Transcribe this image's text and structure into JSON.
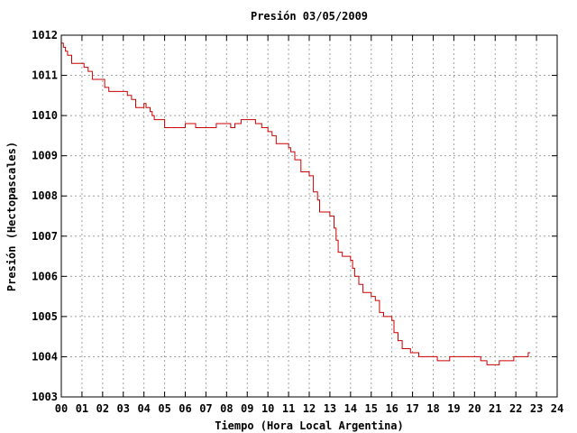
{
  "chart_data": {
    "type": "line",
    "title": "Presión 03/05/2009",
    "xlabel": "Tiempo (Hora Local Argentina)",
    "ylabel": "Presión (Hectopascales)",
    "xlim": [
      0,
      24
    ],
    "ylim": [
      1003,
      1012
    ],
    "x_ticks": [
      "00",
      "01",
      "02",
      "03",
      "04",
      "05",
      "06",
      "07",
      "08",
      "09",
      "10",
      "11",
      "12",
      "13",
      "14",
      "15",
      "16",
      "17",
      "18",
      "19",
      "20",
      "21",
      "22",
      "23",
      "24"
    ],
    "y_ticks": [
      "1003",
      "1004",
      "1005",
      "1006",
      "1007",
      "1008",
      "1009",
      "1010",
      "1011",
      "1012"
    ],
    "grid": true,
    "line_color": "#cc0000",
    "series": [
      {
        "x": [
          0.0,
          0.1,
          0.2,
          0.3,
          0.5,
          0.9,
          1.1,
          1.3,
          1.5,
          1.7,
          1.9,
          2.1,
          2.3,
          2.5,
          2.7,
          3.0,
          3.2,
          3.4,
          3.6,
          3.8,
          4.0,
          4.1,
          4.2,
          4.3,
          4.4,
          4.5,
          4.7,
          5.0,
          5.3,
          5.7,
          6.0,
          6.2,
          6.5,
          7.0,
          7.5,
          7.8,
          8.0,
          8.2,
          8.4,
          8.7,
          9.0,
          9.4,
          9.7,
          10.0,
          10.2,
          10.4,
          10.6,
          10.8,
          11.0,
          11.1,
          11.3,
          11.6,
          11.8,
          12.0,
          12.2,
          12.4,
          12.5,
          12.7,
          13.0,
          13.2,
          13.3,
          13.4,
          13.6,
          13.8,
          14.0,
          14.1,
          14.2,
          14.4,
          14.6,
          15.0,
          15.2,
          15.4,
          15.6,
          15.8,
          16.0,
          16.1,
          16.3,
          16.5,
          16.7,
          16.9,
          17.0,
          17.3,
          17.6,
          17.9,
          18.2,
          18.5,
          18.8,
          19.1,
          19.5,
          19.9,
          20.1,
          20.3,
          20.6,
          21.0,
          21.2,
          21.5,
          21.9,
          22.3,
          22.6,
          22.7
        ],
        "y": [
          1011.8,
          1011.7,
          1011.6,
          1011.5,
          1011.3,
          1011.3,
          1011.2,
          1011.1,
          1010.9,
          1010.9,
          1010.9,
          1010.7,
          1010.6,
          1010.6,
          1010.6,
          1010.6,
          1010.5,
          1010.4,
          1010.2,
          1010.2,
          1010.3,
          1010.2,
          1010.2,
          1010.1,
          1010.0,
          1009.9,
          1009.9,
          1009.7,
          1009.7,
          1009.7,
          1009.8,
          1009.8,
          1009.7,
          1009.7,
          1009.8,
          1009.8,
          1009.8,
          1009.7,
          1009.8,
          1009.9,
          1009.9,
          1009.8,
          1009.7,
          1009.6,
          1009.5,
          1009.3,
          1009.3,
          1009.3,
          1009.2,
          1009.1,
          1008.9,
          1008.6,
          1008.6,
          1008.5,
          1008.1,
          1007.9,
          1007.6,
          1007.6,
          1007.5,
          1007.2,
          1006.9,
          1006.6,
          1006.5,
          1006.5,
          1006.4,
          1006.2,
          1006.0,
          1005.8,
          1005.6,
          1005.5,
          1005.4,
          1005.1,
          1005.0,
          1005.0,
          1004.9,
          1004.6,
          1004.4,
          1004.2,
          1004.2,
          1004.1,
          1004.1,
          1004.0,
          1004.0,
          1004.0,
          1003.9,
          1003.9,
          1004.0,
          1004.0,
          1004.0,
          1004.0,
          1004.0,
          1003.9,
          1003.8,
          1003.8,
          1003.9,
          1003.9,
          1004.0,
          1004.0,
          1004.1,
          1004.1
        ]
      }
    ]
  }
}
